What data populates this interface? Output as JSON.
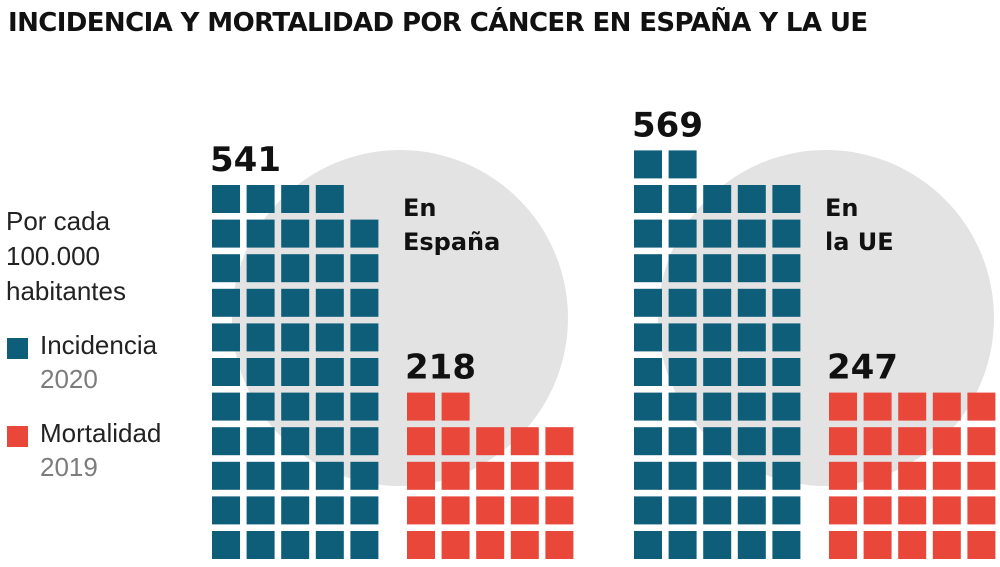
{
  "title": "INCIDENCIA Y MORTALIDAD POR CÁNCER EN ESPAÑA Y LA UE",
  "unit_lines": [
    "Por cada",
    "100.000",
    "habitantes"
  ],
  "legend": [
    {
      "name": "Incidencia",
      "year": "2020",
      "color": "#0e5e7a"
    },
    {
      "name": "Mortalidad",
      "year": "2019",
      "color": "#e8473a"
    }
  ],
  "colors": {
    "incidence": "#0e5e7a",
    "mortality": "#e8473a",
    "circle": "#e3e3e4"
  },
  "chart_data": {
    "type": "waffle",
    "categories": [
      "En España",
      "En la UE"
    ],
    "region_label_lines": [
      [
        "En",
        "España"
      ],
      [
        "En",
        "la UE"
      ]
    ],
    "series": [
      {
        "name": "Incidencia",
        "values": [
          541,
          569
        ]
      },
      {
        "name": "Mortalidad",
        "values": [
          218,
          247
        ]
      }
    ]
  }
}
